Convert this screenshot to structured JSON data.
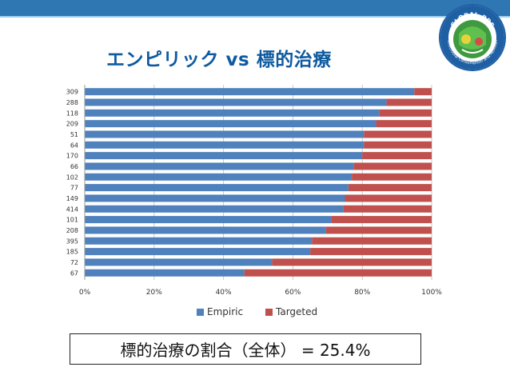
{
  "slide": {
    "title": "エンピリック vs 標的治療",
    "summary": "標的治療の割合（全体） = 25.4%"
  },
  "logo": {
    "text": "GLOBAL-PPS",
    "ring_text": "Antimicrobial Consumption and Resistance"
  },
  "colors": {
    "topbar": "#2f77b3",
    "title": "#0e5aa0",
    "empiric": "#4f81bd",
    "targeted": "#c0504d"
  },
  "chart_data": {
    "type": "bar",
    "orientation": "horizontal",
    "stacked": true,
    "percent": true,
    "categories": [
      "309",
      "288",
      "118",
      "209",
      "51",
      "64",
      "170",
      "66",
      "102",
      "77",
      "149",
      "414",
      "101",
      "208",
      "395",
      "185",
      "72",
      "67"
    ],
    "series": [
      {
        "name": "Empiric",
        "color": "#4f81bd",
        "values": [
          95,
          87,
          85,
          84,
          80.5,
          80.5,
          80,
          77.5,
          77,
          76,
          75,
          74.5,
          71,
          69.5,
          65.5,
          65,
          54,
          46
        ]
      },
      {
        "name": "Targeted",
        "color": "#c0504d",
        "values": [
          5,
          13,
          15,
          16,
          19.5,
          19.5,
          20,
          22.5,
          23,
          24,
          25,
          25.5,
          29,
          30.5,
          34.5,
          35,
          46,
          54
        ]
      }
    ],
    "xlim": [
      0,
      100
    ],
    "xticks": [
      "0%",
      "20%",
      "40%",
      "60%",
      "80%",
      "100%"
    ],
    "grid": "vertical",
    "legend": "bottom"
  }
}
